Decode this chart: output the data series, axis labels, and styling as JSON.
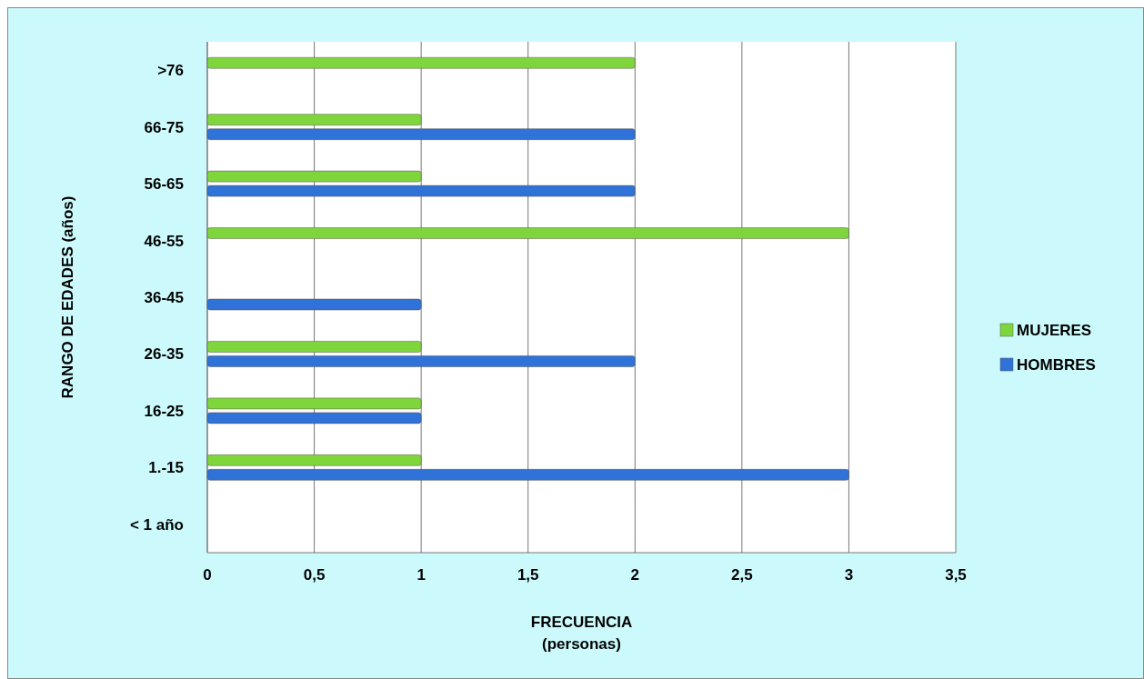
{
  "chart_data": {
    "type": "bar",
    "orientation": "horizontal",
    "xlabel": "FRECUENCIA\n(personas)",
    "ylabel": "RANGO DE EDADES (años)",
    "categories": [
      ">76",
      "66-75",
      "56-65",
      "46-55",
      "36-45",
      "26-35",
      "16-25",
      "1.-15",
      "< 1 año"
    ],
    "series": [
      {
        "name": "MUJERES",
        "color": "#7fd63c",
        "values": [
          2,
          1,
          1,
          3,
          null,
          1,
          1,
          1,
          null
        ]
      },
      {
        "name": "HOMBRES",
        "color": "#2f72d8",
        "values": [
          null,
          2,
          2,
          null,
          1,
          2,
          1,
          3,
          null
        ]
      }
    ],
    "xlim": [
      0,
      3.5
    ],
    "xticks": [
      0,
      {
        "value": 0.5,
        "label": "0,5"
      },
      1,
      {
        "value": 1.5,
        "label": "1,5"
      },
      2,
      {
        "value": 2.5,
        "label": "2,5"
      },
      3,
      {
        "value": 3.5,
        "label": "3,5"
      }
    ],
    "grid": "x",
    "legend": "right"
  }
}
